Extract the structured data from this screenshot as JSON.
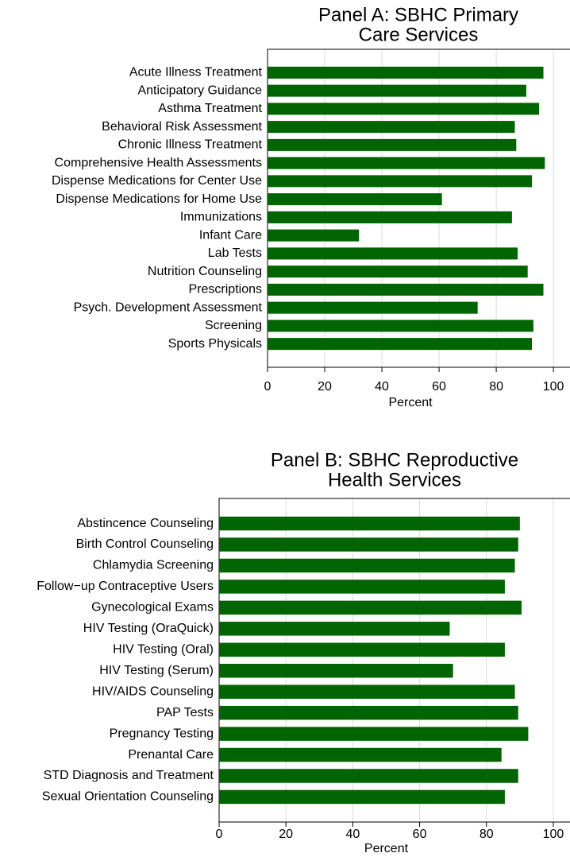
{
  "chart_data": [
    {
      "type": "barh",
      "title": [
        "Panel A: SBHC Primary",
        "Care Services"
      ],
      "x_label": "Percent",
      "color": "#006400",
      "grid": true,
      "categories": [
        "Acute Illness Treatment",
        "Anticipatory Guidance",
        "Asthma Treatment",
        "Behavioral Risk Assessment",
        "Chronic Illness Treatment",
        "Comprehensive Health Assessments",
        "Dispense Medications for Center Use",
        "Dispense Medications for Home Use",
        "Immunizations",
        "Infant Care",
        "Lab Tests",
        "Nutrition Counseling",
        "Prescriptions",
        "Psych. Development Assessment",
        "Screening",
        "Sports Physicals"
      ],
      "values": [
        96.5,
        90.5,
        95,
        86.5,
        87,
        97,
        92.5,
        61,
        85.5,
        32,
        87.5,
        91,
        96.5,
        73.5,
        93,
        92.5
      ],
      "xlim": [
        0,
        105.8
      ],
      "xticks": [
        0,
        20,
        40,
        60,
        80,
        100
      ]
    },
    {
      "type": "barh",
      "title": [
        "Panel B: SBHC Reproductive",
        "Health Services"
      ],
      "x_label": "Percent",
      "color": "#006400",
      "grid": true,
      "categories": [
        "Abstincence Counseling",
        "Birth Control Counseling",
        "Chlamydia Screening",
        "Follow−up Contraceptive Users",
        "Gynecological Exams",
        "HIV Testing (OraQuick)",
        "HIV Testing (Oral)",
        "HIV Testing (Serum)",
        "HIV/AIDS Counseling",
        "PAP Tests",
        "Pregnancy Testing",
        "Prenantal Care",
        "STD Diagnosis and Treatment",
        "Sexual Orientation Counseling"
      ],
      "values": [
        90,
        89.5,
        88.5,
        85.5,
        90.5,
        69,
        85.5,
        70,
        88.5,
        89.5,
        92.5,
        84.5,
        89.5,
        85.5
      ],
      "xlim": [
        0,
        105
      ],
      "xticks": [
        0,
        20,
        40,
        60,
        80,
        100
      ]
    }
  ]
}
